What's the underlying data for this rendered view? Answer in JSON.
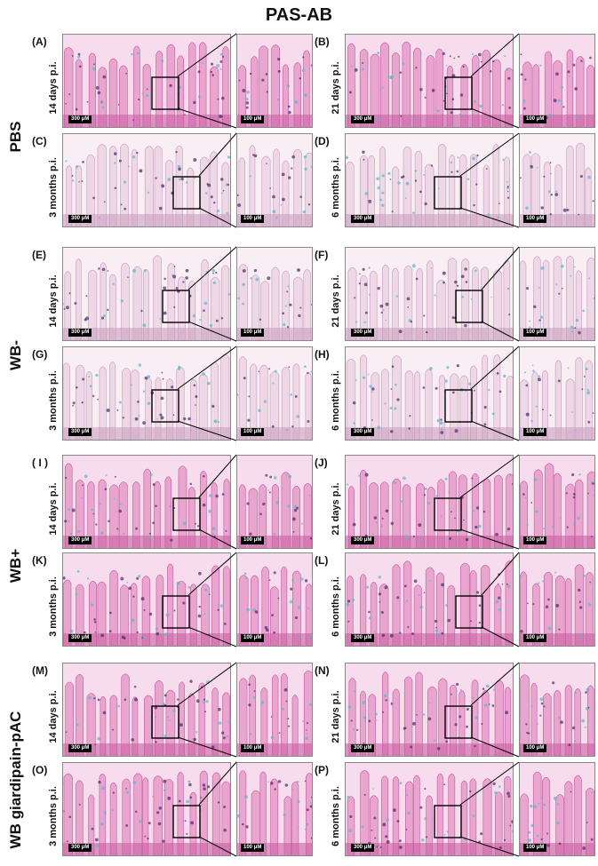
{
  "title": "PAS-AB",
  "groups": [
    "PBS",
    "WB-",
    "WB+",
    "WB giardipain-pAC"
  ],
  "panels": [
    {
      "id": "(A)",
      "time": "14 days p.i.",
      "scale_main": "300 μM",
      "scale_zoom": "100 μM",
      "tone": "pink"
    },
    {
      "id": "(B)",
      "time": "21 days p.i.",
      "scale_main": "300 μM",
      "scale_zoom": "100 μM",
      "tone": "pink"
    },
    {
      "id": "(C)",
      "time": "3 months p.i.",
      "scale_main": "300 μM",
      "scale_zoom": "100 μM",
      "tone": "pale"
    },
    {
      "id": "(D)",
      "time": "6 months p.i.",
      "scale_main": "300 μM",
      "scale_zoom": "100 μM",
      "tone": "pale"
    },
    {
      "id": "(E)",
      "time": "14 days p.i.",
      "scale_main": "300 μM",
      "scale_zoom": "100 μM",
      "tone": "pale"
    },
    {
      "id": "(F)",
      "time": "21 days p.i.",
      "scale_main": "300 μM",
      "scale_zoom": "100 μM",
      "tone": "pale"
    },
    {
      "id": "(G)",
      "time": "3 months p.i.",
      "scale_main": "300 μM",
      "scale_zoom": "100 μM",
      "tone": "pale"
    },
    {
      "id": "(H)",
      "time": "6 months p.i.",
      "scale_main": "300 μM",
      "scale_zoom": "100 μM",
      "tone": "pale"
    },
    {
      "id": "( I )",
      "time": "14 days p.i.",
      "scale_main": "300 μM",
      "scale_zoom": "100 μM",
      "tone": "pink"
    },
    {
      "id": "(J)",
      "time": "21 days p.i.",
      "scale_main": "300 μM",
      "scale_zoom": "100 μM",
      "tone": "pink"
    },
    {
      "id": "(K)",
      "time": "3 months p.i.",
      "scale_main": "300 μM",
      "scale_zoom": "100 μM",
      "tone": "pink"
    },
    {
      "id": "(L)",
      "time": "6 months p.i.",
      "scale_main": "300 μM",
      "scale_zoom": "100 μM",
      "tone": "pink"
    },
    {
      "id": "(M)",
      "time": "14 days p.i.",
      "scale_main": "300 μM",
      "scale_zoom": "100 μM",
      "tone": "pink"
    },
    {
      "id": "(N)",
      "time": "21 days p.i.",
      "scale_main": "300 μM",
      "scale_zoom": "100 μM",
      "tone": "pink"
    },
    {
      "id": "(O)",
      "time": "3 months p.i.",
      "scale_main": "300 μM",
      "scale_zoom": "100 μM",
      "tone": "pink"
    },
    {
      "id": "(P)",
      "time": "6 months p.i.",
      "scale_main": "300 μM",
      "scale_zoom": "100 μM",
      "tone": "pink"
    }
  ],
  "tones": {
    "pink": {
      "base": "#e8a6cf",
      "deep": "#c8579f",
      "light": "#f6dcec"
    },
    "pale": {
      "base": "#eed8e6",
      "deep": "#c99bbd",
      "light": "#f8eef4"
    }
  },
  "blue_stain": "#5bb6c9"
}
